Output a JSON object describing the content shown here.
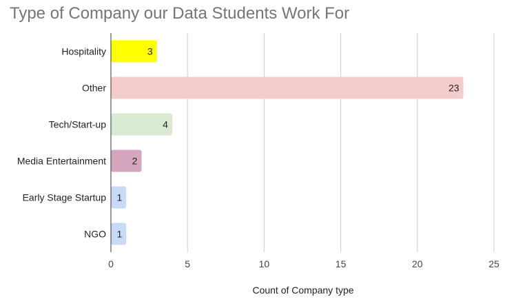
{
  "chart_data": {
    "type": "bar",
    "orientation": "horizontal",
    "title": "Type of Company our Data Students Work For",
    "xlabel": "Count of Company type",
    "ylabel": "",
    "categories": [
      "Hospitality",
      "Other",
      "Tech/Start-up",
      "Media Entertainment",
      "Early Stage Startup",
      "NGO"
    ],
    "values": [
      3,
      23,
      4,
      2,
      1,
      1
    ],
    "colors": [
      "#ffff00",
      "#f4cccc",
      "#d9ead3",
      "#d5a6bd",
      "#c9daf8",
      "#c9daf8"
    ],
    "xlim": [
      0,
      25
    ],
    "x_ticks": [
      0,
      5,
      10,
      15,
      20,
      25
    ],
    "grid": true,
    "legend": "none",
    "data_labels": true
  }
}
